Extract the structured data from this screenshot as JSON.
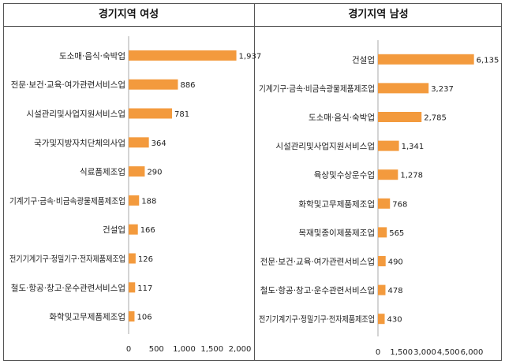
{
  "chart_data": [
    {
      "type": "bar",
      "orientation": "horizontal",
      "title": "경기지역 여성",
      "categories": [
        "도소매·음식·숙박업",
        "전문·보건·교육·여가관련서비스업",
        "시설관리및사업지원서비스업",
        "국가및지방자치단체의사업",
        "식료품제조업",
        "기계기구·금속·비금속광물제품제조업",
        "건설업",
        "전기기계기구·정밀기구·전자제품제조업",
        "철도·항공·창고·운수관련서비스업",
        "화학및고무제품제조업"
      ],
      "values": [
        1937,
        886,
        781,
        364,
        290,
        188,
        166,
        126,
        117,
        106
      ],
      "value_labels": [
        "1,937",
        "886",
        "781",
        "364",
        "290",
        "188",
        "166",
        "126",
        "117",
        "106"
      ],
      "xlim": [
        0,
        2000
      ],
      "ticks": [
        0,
        500,
        1000,
        1500,
        2000
      ],
      "tick_labels": [
        "0",
        "500",
        "1,000",
        "1,500",
        "2,000"
      ],
      "bar_color": "#f39a3d"
    },
    {
      "type": "bar",
      "orientation": "horizontal",
      "title": "경기지역 남성",
      "categories": [
        "건설업",
        "기계기구·금속·비금속광물제품제조업",
        "도소매·음식·숙박업",
        "시설관리및사업지원서비스업",
        "육상및수상운수업",
        "화학및고무제품제조업",
        "목재및종이제품제조업",
        "전문·보건·교육·여가관련서비스업",
        "철도·항공·창고·운수관련서비스업",
        "전기기계기구·정밀기구·전자제품제조업"
      ],
      "values": [
        6135,
        3237,
        2785,
        1341,
        1278,
        768,
        565,
        490,
        478,
        430
      ],
      "value_labels": [
        "6,135",
        "3,237",
        "2,785",
        "1,341",
        "1,278",
        "768",
        "565",
        "490",
        "478",
        "430"
      ],
      "xlim": [
        0,
        6000
      ],
      "ticks": [
        0,
        1500,
        3000,
        4500,
        6000
      ],
      "tick_labels": [
        "0",
        "1,500",
        "3,000",
        "4,500",
        "6,000"
      ],
      "bar_color": "#f39a3d"
    }
  ]
}
